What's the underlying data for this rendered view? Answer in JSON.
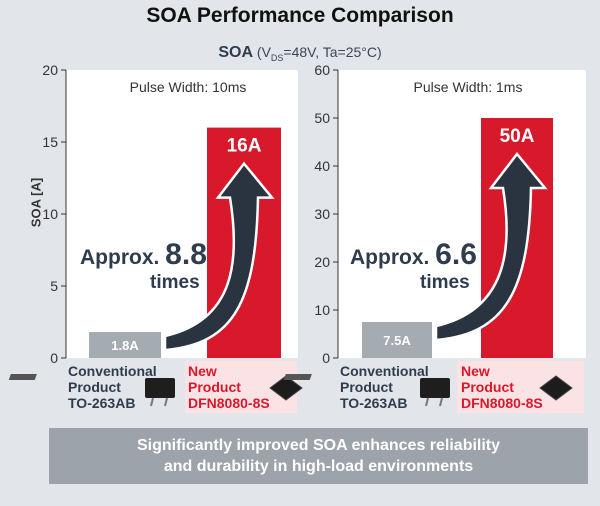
{
  "title": "SOA Performance Comparison",
  "subtitle": {
    "label": "SOA",
    "open": "(V",
    "sub": "DS",
    "rest": "=48V, Ta=25°C)"
  },
  "colors": {
    "conventional": "#a4abb1",
    "new": "#d7192b",
    "panel_bg": "#ffffff",
    "arrow": "#2a3440",
    "label_dark": "#2f3c4e"
  },
  "icons": {
    "conventional_package": "to-263ab-package-icon",
    "new_package": "dfn8080-package-icon"
  },
  "footer": {
    "line1": "Significantly improved SOA enhances reliability",
    "line2": "and durability in high-load environments"
  },
  "chart_data": [
    {
      "type": "bar",
      "subtitle": "Pulse Width: 10ms",
      "ylabel": "SOA [A]",
      "ylim": [
        0,
        20
      ],
      "yticks": [
        "0",
        "5",
        "10",
        "15",
        "20"
      ],
      "categories": [
        "Conventional Product TO-263AB",
        "New Product DFN8080-8S"
      ],
      "values": [
        1.8,
        16
      ],
      "value_labels": [
        "1.8A",
        "16A"
      ],
      "annotation": {
        "prefix": "Approx.",
        "factor": "8.8",
        "suffix": "times"
      },
      "bottom_labels": [
        [
          "Conventional",
          "Product",
          "TO-263AB"
        ],
        [
          "New",
          "Product",
          "DFN8080-8S"
        ]
      ]
    },
    {
      "type": "bar",
      "subtitle": "Pulse Width: 1ms",
      "ylim": [
        0,
        60
      ],
      "yticks": [
        "0",
        "10",
        "20",
        "30",
        "40",
        "50",
        "60"
      ],
      "categories": [
        "Conventional Product TO-263AB",
        "New Product DFN8080-8S"
      ],
      "values": [
        7.5,
        50
      ],
      "value_labels": [
        "7.5A",
        "50A"
      ],
      "annotation": {
        "prefix": "Approx.",
        "factor": "6.6",
        "suffix": "times"
      },
      "bottom_labels": [
        [
          "Conventional",
          "Product",
          "TO-263AB"
        ],
        [
          "New",
          "Product",
          "DFN8080-8S"
        ]
      ]
    }
  ]
}
